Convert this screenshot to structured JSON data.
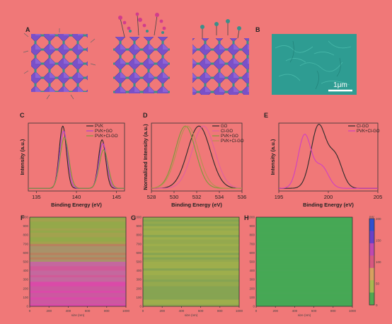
{
  "panels": {
    "A": "A",
    "B": "B",
    "C": "C",
    "D": "D",
    "E": "E",
    "F": "F",
    "G": "G",
    "H": "H"
  },
  "sem": {
    "scalebar": "1μm"
  },
  "colors": {
    "black": "#2a2a2a",
    "purple": "#b040d0",
    "olive": "#7a9a3a",
    "green": "#8a9a4a",
    "pink": "#e060a0"
  },
  "chart_data": [
    {
      "type": "line",
      "panel": "C",
      "xlabel": "Binding Energy (eV)",
      "ylabel": "Intensity (a.u.)",
      "xlim": [
        134,
        146
      ],
      "xticks": [
        "135",
        "140",
        "145"
      ],
      "series": [
        {
          "name": "PVK",
          "color": "#2a2a2a",
          "peaks": [
            [
              138.3,
              1.0,
              0.45
            ],
            [
              143.2,
              0.78,
              0.45
            ]
          ]
        },
        {
          "name": "PVK+GO",
          "color": "#b040d0",
          "peaks": [
            [
              138.4,
              0.92,
              0.5
            ],
            [
              143.3,
              0.72,
              0.5
            ]
          ]
        },
        {
          "name": "PVK+Cl-GO",
          "color": "#7a9a3a",
          "peaks": [
            [
              138.5,
              0.82,
              0.55
            ],
            [
              143.4,
              0.62,
              0.55
            ]
          ]
        }
      ]
    },
    {
      "type": "line",
      "panel": "D",
      "xlabel": "Binding Energy (eV)",
      "ylabel": "Normalized Intensity (a.u.)",
      "xlim": [
        528,
        536
      ],
      "xticks": [
        "528",
        "530",
        "532",
        "534",
        "536"
      ],
      "series": [
        {
          "name": "GO",
          "color": "#2a2a2a",
          "peaks": [
            [
              532.2,
              1.0,
              1.0
            ]
          ]
        },
        {
          "name": "Cl-GO",
          "color": "#e060a0",
          "peaks": [
            [
              532.6,
              1.0,
              1.0
            ]
          ]
        },
        {
          "name": "PVK+GO",
          "color": "#7a9a3a",
          "peaks": [
            [
              531.0,
              1.0,
              0.9
            ]
          ]
        },
        {
          "name": "PVK+Cl-GO",
          "color": "#b89050",
          "peaks": [
            [
              531.2,
              1.0,
              0.95
            ]
          ]
        }
      ]
    },
    {
      "type": "line",
      "panel": "E",
      "xlabel": "Binding Energy (eV)",
      "ylabel": "Intensity (a.u.)",
      "xlim": [
        195,
        205
      ],
      "xticks": [
        "195",
        "200",
        "205"
      ],
      "series": [
        {
          "name": "Cl-GO",
          "color": "#2a2a2a",
          "peaks": [
            [
              199.0,
              1.0,
              0.75
            ],
            [
              200.7,
              0.5,
              0.7
            ]
          ]
        },
        {
          "name": "PVK+Cl-GO",
          "color": "#d040c0",
          "peaks": [
            [
              197.6,
              0.85,
              0.65
            ],
            [
              199.3,
              0.35,
              0.7
            ]
          ]
        }
      ]
    },
    {
      "type": "heatmap",
      "panel": "F",
      "xlabel": "size (nm)",
      "xticks": [
        "0",
        "200",
        "400",
        "600",
        "800",
        "1000"
      ],
      "yticks": [
        "0",
        "100",
        "200",
        "300",
        "400",
        "500",
        "600",
        "700",
        "800",
        "900",
        "1000"
      ]
    },
    {
      "type": "heatmap",
      "panel": "G",
      "xlabel": "size (nm)",
      "xticks": [
        "0",
        "200",
        "400",
        "600",
        "800",
        "1000"
      ],
      "yticks": [
        "0",
        "100",
        "200",
        "300",
        "400",
        "500",
        "600",
        "700",
        "800",
        "900",
        "1000"
      ]
    },
    {
      "type": "heatmap",
      "panel": "H",
      "xlabel": "size (nm)",
      "xticks": [
        "0",
        "200",
        "400",
        "600",
        "800",
        "1000"
      ],
      "yticks": [
        "0",
        "100",
        "200",
        "300",
        "400",
        "500",
        "600",
        "700",
        "800",
        "900",
        "1000"
      ],
      "colorbar": {
        "unit": "mV",
        "ticks": [
          "200",
          "150",
          "100",
          "50",
          "0"
        ]
      }
    }
  ]
}
